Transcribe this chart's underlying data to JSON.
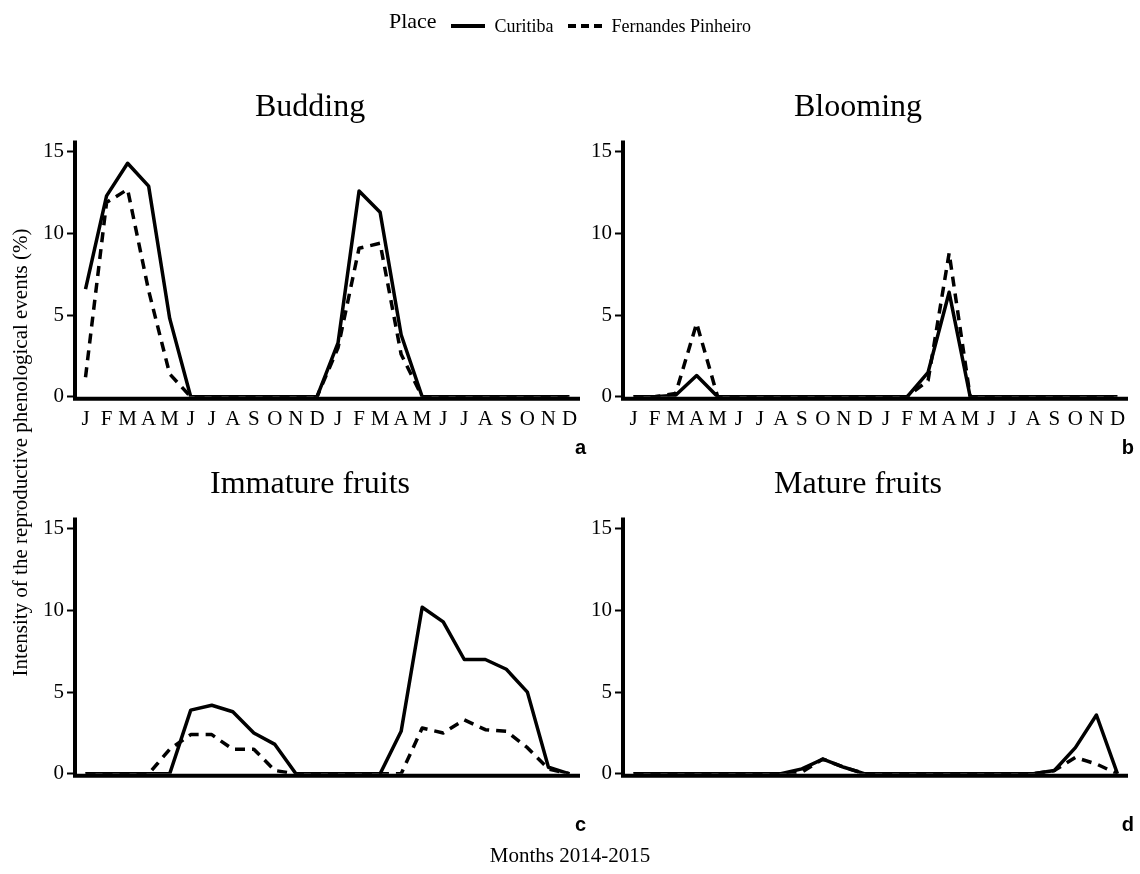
{
  "chart_data": [
    {
      "type": "line",
      "title": "Budding",
      "ylabel": "Intensity of the reproductive phenological events (%)",
      "legend_title": "Place",
      "legend": "top",
      "categories": [
        "J",
        "F",
        "M",
        "A",
        "M",
        "J",
        "J",
        "A",
        "S",
        "O",
        "N",
        "D",
        "J",
        "F",
        "M",
        "A",
        "M",
        "J",
        "J",
        "A",
        "S",
        "O",
        "N",
        "D"
      ],
      "ylim": [
        0,
        15.7
      ],
      "yticks": [
        0,
        5,
        10,
        15
      ],
      "annotations": [
        "a"
      ],
      "series": [
        {
          "name": "Curitiba",
          "color": "#000000",
          "line_style": "solid",
          "values": [
            6.6,
            12.3,
            14.3,
            12.9,
            4.8,
            0,
            0,
            0,
            0,
            0,
            0,
            0,
            3.3,
            12.6,
            11.3,
            3.8,
            0,
            0,
            0,
            0,
            0,
            0,
            0,
            0
          ]
        },
        {
          "name": "Fernandes Pinheiro",
          "color": "#000000",
          "line_style": "dashed",
          "values": [
            1.2,
            11.9,
            12.7,
            6.5,
            1.4,
            0,
            0,
            0,
            0,
            0,
            0,
            0,
            3.0,
            9.1,
            9.4,
            2.6,
            0,
            0,
            0,
            0,
            0,
            0,
            0,
            0
          ]
        }
      ]
    },
    {
      "type": "line",
      "title": "Blooming",
      "categories": [
        "J",
        "F",
        "M",
        "A",
        "M",
        "J",
        "J",
        "A",
        "S",
        "O",
        "N",
        "D",
        "J",
        "F",
        "M",
        "A",
        "M",
        "J",
        "J",
        "A",
        "S",
        "O",
        "N",
        "D"
      ],
      "ylim": [
        0,
        15.7
      ],
      "yticks": [
        0,
        5,
        10,
        15
      ],
      "annotations": [
        "b"
      ],
      "series": [
        {
          "color": "#000000",
          "line_style": "solid",
          "values": [
            0,
            0,
            0.1,
            1.3,
            0,
            0,
            0,
            0,
            0,
            0,
            0,
            0,
            0,
            0,
            1.5,
            6.4,
            0,
            0,
            0,
            0,
            0,
            0,
            0,
            0
          ]
        },
        {
          "color": "#000000",
          "line_style": "dashed",
          "values": [
            0,
            0,
            0.2,
            4.5,
            0,
            0,
            0,
            0,
            0,
            0,
            0,
            0,
            0,
            0,
            1.0,
            8.8,
            0,
            0,
            0,
            0,
            0,
            0,
            0,
            0
          ]
        }
      ]
    },
    {
      "type": "line",
      "title": "Immature fruits",
      "xlabel": "Months 2014-2015",
      "tick_labels": "y",
      "categories": [
        null,
        null,
        null,
        null,
        null,
        null,
        null,
        null,
        null,
        null,
        null,
        null,
        null,
        null,
        null,
        null,
        null,
        null,
        null,
        null,
        null,
        null,
        null,
        null
      ],
      "ylim": [
        0,
        15.7
      ],
      "yticks": [
        0,
        5,
        10,
        15
      ],
      "annotations": [
        "c"
      ],
      "series": [
        {
          "color": "#000000",
          "line_style": "solid",
          "values": [
            0,
            0,
            0,
            0,
            0,
            3.9,
            4.2,
            3.8,
            2.5,
            1.8,
            0,
            0,
            0,
            0,
            0,
            2.6,
            10.2,
            9.3,
            7.0,
            7.0,
            6.4,
            5.0,
            0.4,
            0
          ]
        },
        {
          "color": "#000000",
          "line_style": "dashed",
          "values": [
            0,
            0,
            0,
            0,
            1.5,
            2.4,
            2.4,
            1.5,
            1.5,
            0.2,
            0,
            0,
            0,
            0,
            0,
            0,
            2.8,
            2.5,
            3.3,
            2.7,
            2.6,
            1.6,
            0.3,
            0
          ]
        }
      ]
    },
    {
      "type": "line",
      "title": "Mature fruits",
      "tick_labels": "y",
      "categories": [
        null,
        null,
        null,
        null,
        null,
        null,
        null,
        null,
        null,
        null,
        null,
        null,
        null,
        null,
        null,
        null,
        null,
        null,
        null,
        null,
        null,
        null,
        null,
        null
      ],
      "ylim": [
        0,
        15.7
      ],
      "yticks": [
        0,
        5,
        10,
        15
      ],
      "annotations": [
        "d"
      ],
      "series": [
        {
          "color": "#000000",
          "line_style": "solid",
          "values": [
            0,
            0,
            0,
            0,
            0,
            0,
            0,
            0,
            0.3,
            0.9,
            0.4,
            0,
            0,
            0,
            0,
            0,
            0,
            0,
            0,
            0,
            0.2,
            1.6,
            3.6,
            0
          ]
        },
        {
          "color": "#000000",
          "line_style": "dashed",
          "values": [
            0,
            0,
            0,
            0,
            0,
            0,
            0,
            0,
            0.1,
            0.9,
            0.4,
            0,
            0,
            0,
            0,
            0,
            0,
            0,
            0,
            0,
            0.2,
            1.0,
            0.6,
            0
          ]
        }
      ]
    }
  ]
}
